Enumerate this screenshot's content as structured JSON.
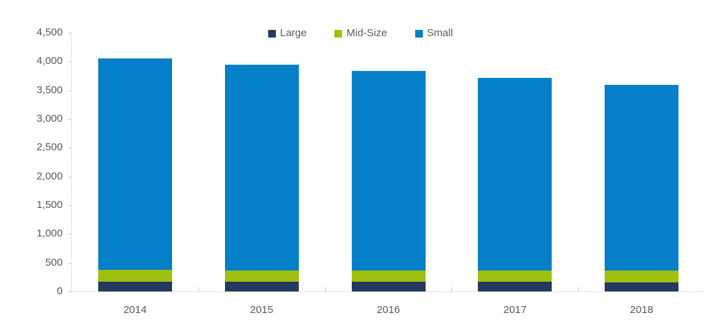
{
  "chart_data": {
    "type": "bar",
    "stacked": true,
    "title": "",
    "xlabel": "",
    "ylabel": "",
    "categories": [
      "2014",
      "2015",
      "2016",
      "2017",
      "2018"
    ],
    "series": [
      {
        "name": "Large",
        "color": "#233A5E",
        "values": [
          170,
          170,
          170,
          170,
          160
        ]
      },
      {
        "name": "Mid-Size",
        "color": "#9FC00C",
        "values": [
          200,
          195,
          195,
          195,
          200
        ]
      },
      {
        "name": "Small",
        "color": "#0580C8",
        "values": [
          3685,
          3575,
          3465,
          3350,
          3235
        ]
      }
    ],
    "stack_totals": [
      4055,
      3940,
      3830,
      3715,
      3595
    ],
    "ylim": [
      0,
      4500
    ],
    "ytick_step": 500,
    "ytick_labels": [
      "0",
      "500",
      "1,000",
      "1,500",
      "2,000",
      "2,500",
      "3,000",
      "3,500",
      "4,000",
      "4,500"
    ],
    "grid": false,
    "legend_position": "top-center",
    "legend": [
      {
        "label": "Large",
        "color": "#233A5E"
      },
      {
        "label": "Mid-Size",
        "color": "#9FC00C"
      },
      {
        "label": "Small",
        "color": "#0580C8"
      }
    ]
  },
  "colors": {
    "background": "#ffffff",
    "axis_line": "#c6c6c6",
    "tick": "#c9c9c9",
    "text": "#595959"
  }
}
